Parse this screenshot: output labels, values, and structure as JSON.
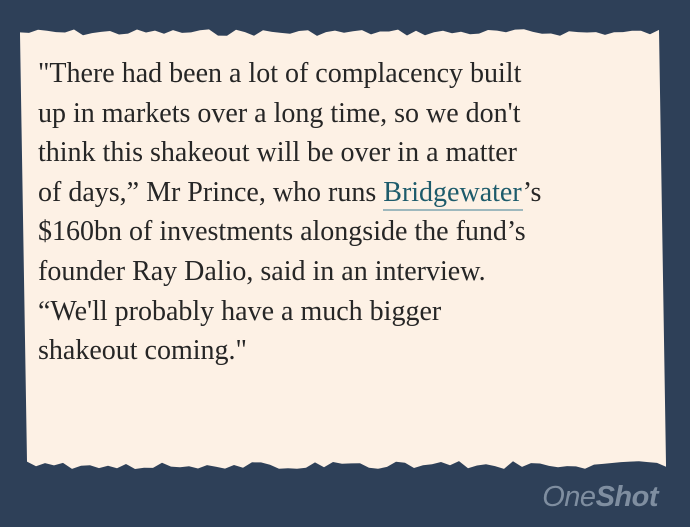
{
  "quote": {
    "line1": "\"There had been a lot of complacency built",
    "line2": "up in markets over a long time, so we don't",
    "line3": "think this shakeout will be over in a matter",
    "line4_before": "of days,” Mr Prince, who runs ",
    "line4_link": "Bridgewater",
    "line4_after": "’s",
    "line5": "$160bn of investments alongside the fund’s",
    "line6": "founder Ray Dalio, said in an interview.",
    "line7": "“We'll probably have a much bigger",
    "line8": "shakeout coming.\""
  },
  "brand": {
    "part1": "One",
    "part2": "Shot"
  },
  "colors": {
    "background": "#2e4058",
    "paper": "#fdf1e5",
    "link": "#1d5b6b",
    "text": "#262626"
  }
}
